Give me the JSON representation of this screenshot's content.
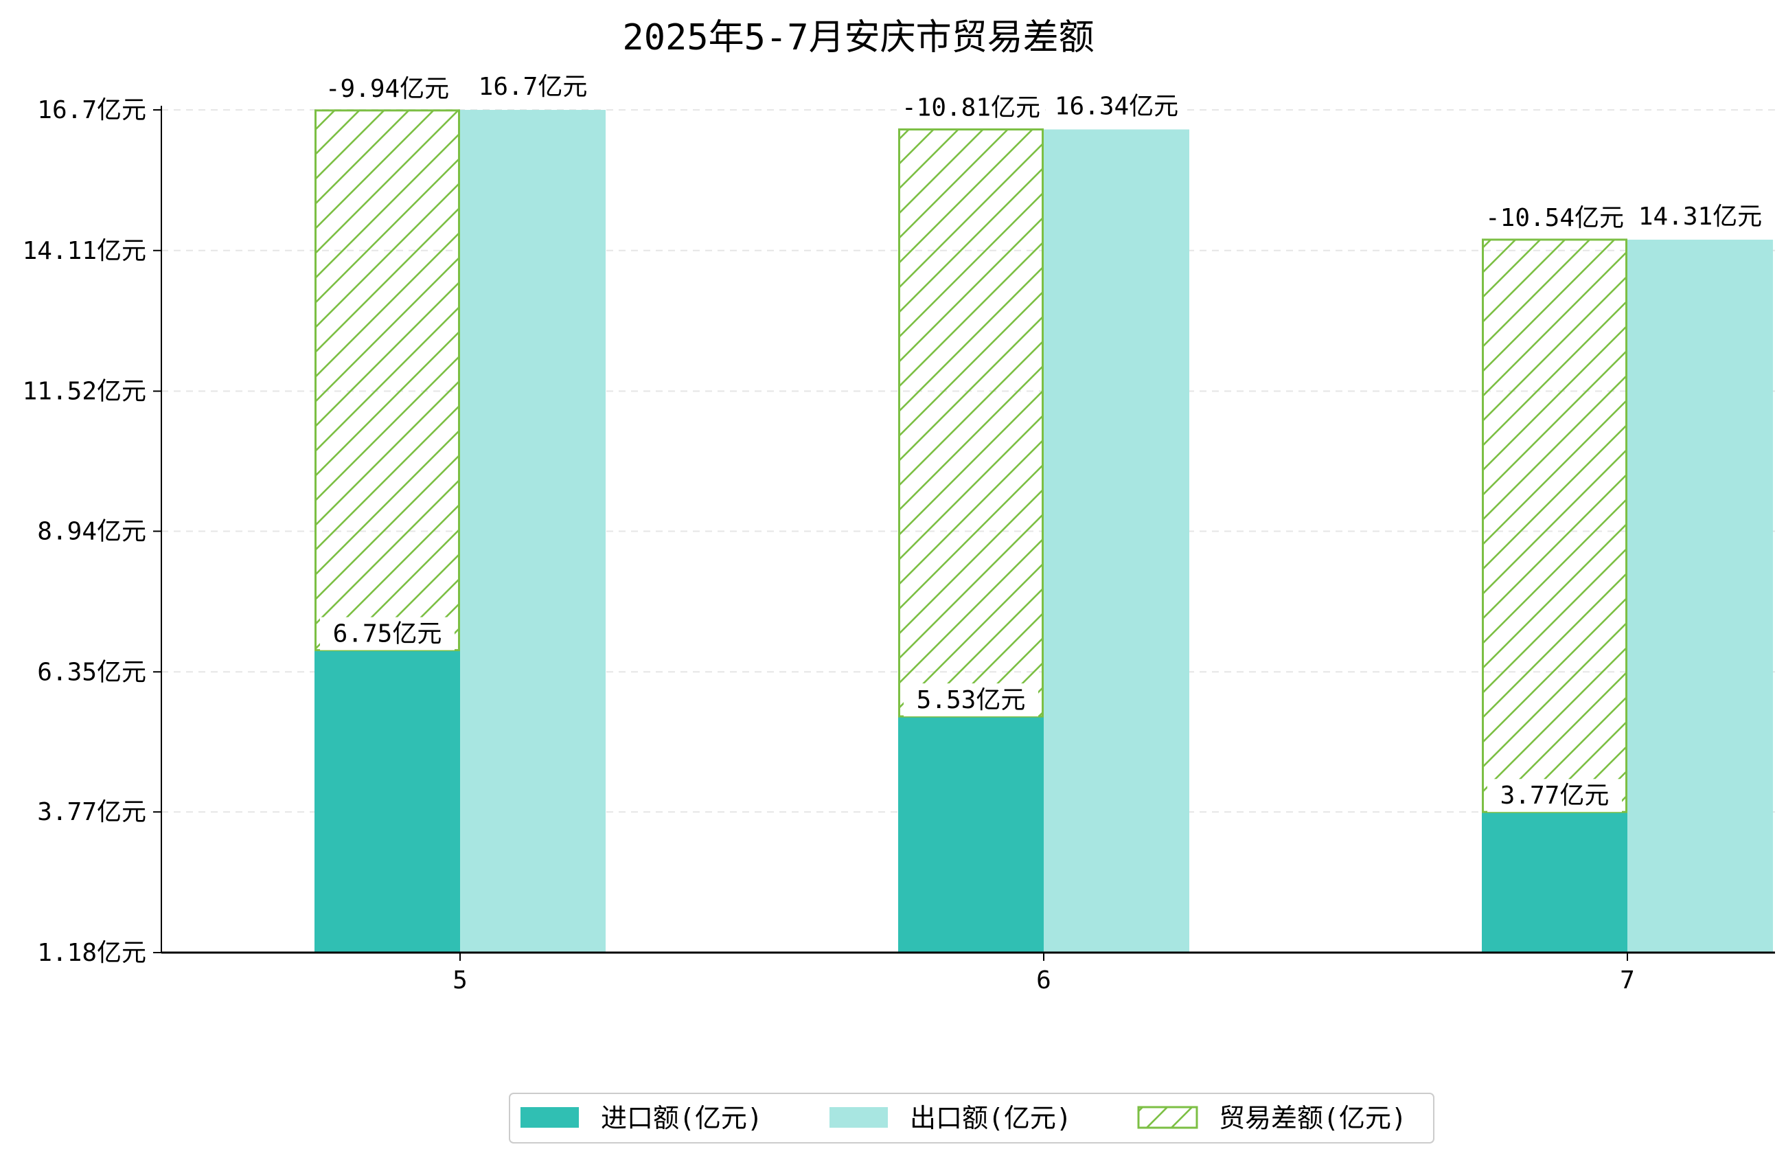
{
  "chart_data": {
    "type": "bar",
    "title": "2025年5-7月安庆市贸易差额",
    "categories": [
      "5",
      "6",
      "7"
    ],
    "series": [
      {
        "name": "进口额(亿元)",
        "color": "#30bfb3",
        "values": [
          6.75,
          5.53,
          3.77
        ],
        "labels": [
          "6.75亿元",
          "5.53亿元",
          "3.77亿元"
        ]
      },
      {
        "name": "出口额(亿元)",
        "color": "#a8e6e1",
        "values": [
          16.7,
          16.34,
          14.31
        ],
        "labels": [
          "16.7亿元",
          "16.34亿元",
          "14.31亿元"
        ]
      },
      {
        "name": "贸易差额(亿元)",
        "color": "#7cbf44",
        "hatch": true,
        "values": [
          -9.94,
          -10.81,
          -10.54
        ],
        "labels": [
          "-9.94亿元",
          "-10.81亿元",
          "-10.54亿元"
        ]
      }
    ],
    "xlabel": "",
    "ylabel": "",
    "ylim": [
      1.18,
      16.7
    ],
    "yticks": [
      1.18,
      3.77,
      6.35,
      8.94,
      11.52,
      14.11,
      16.7
    ],
    "ytick_labels": [
      "1.18亿元",
      "3.77亿元",
      "6.35亿元",
      "8.94亿元",
      "11.52亿元",
      "14.11亿元",
      "16.7亿元"
    ],
    "grid": "horizontal-dashed",
    "legend_position": "bottom-center"
  }
}
